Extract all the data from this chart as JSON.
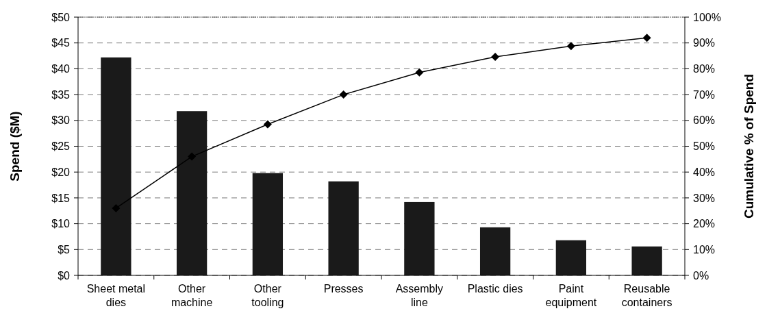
{
  "chart_data": {
    "type": "bar",
    "ylabel": "Spend ($M)",
    "y2label": "Cumulative % of Spend",
    "categories": [
      "Sheet metal dies",
      "Other machine",
      "Other tooling",
      "Presses",
      "Assembly line",
      "Plastic dies",
      "Paint equipment",
      "Reusable containers"
    ],
    "series": [
      {
        "color": "#1a1a1a",
        "values": [
          42.2,
          31.8,
          19.8,
          18.2,
          14.2,
          9.3,
          6.8,
          5.6
        ]
      },
      {
        "type": "line",
        "axis": "y2",
        "color": "#000000",
        "marker": "diamond",
        "values": [
          26,
          46,
          58.5,
          70,
          78.6,
          84.6,
          88.8,
          92
        ]
      }
    ],
    "ylim": [
      0,
      50
    ],
    "yticks": [
      {
        "value": 0,
        "label": "$0"
      },
      {
        "value": 5,
        "label": "$5"
      },
      {
        "value": 10,
        "label": "$10"
      },
      {
        "value": 15,
        "label": "$15"
      },
      {
        "value": 20,
        "label": "$20"
      },
      {
        "value": 25,
        "label": "$25"
      },
      {
        "value": 30,
        "label": "$30"
      },
      {
        "value": 35,
        "label": "$35"
      },
      {
        "value": 40,
        "label": "$40"
      },
      {
        "value": 45,
        "label": "$45"
      },
      {
        "value": 50,
        "label": "$50"
      }
    ],
    "y2lim": [
      0,
      100
    ],
    "y2ticks": [
      {
        "value": 0,
        "label": "0%"
      },
      {
        "value": 10,
        "label": "10%"
      },
      {
        "value": 20,
        "label": "20%"
      },
      {
        "value": 30,
        "label": "30%"
      },
      {
        "value": 40,
        "label": "40%"
      },
      {
        "value": 50,
        "label": "50%"
      },
      {
        "value": 60,
        "label": "60%"
      },
      {
        "value": 70,
        "label": "70%"
      },
      {
        "value": 80,
        "label": "80%"
      },
      {
        "value": 90,
        "label": "90%"
      },
      {
        "value": 100,
        "label": "100%"
      }
    ],
    "grid": "y"
  }
}
